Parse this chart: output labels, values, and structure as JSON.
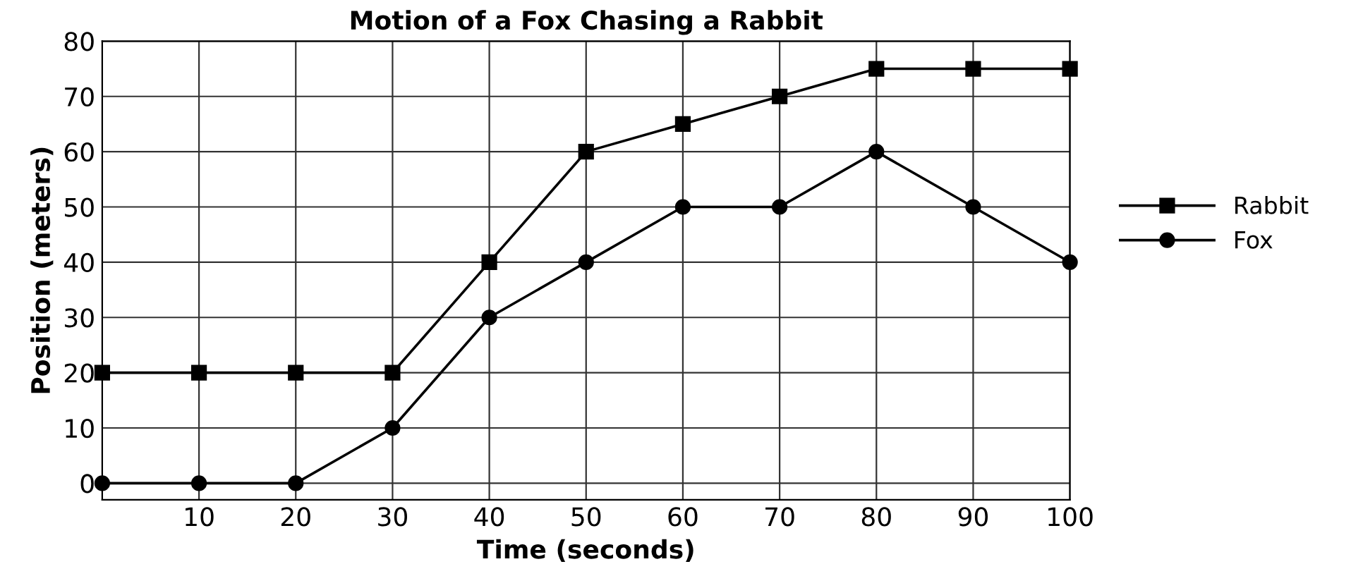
{
  "chart_data": {
    "type": "line",
    "title": "Motion of a Fox Chasing a Rabbit",
    "xlabel": "Time (seconds)",
    "ylabel": "Position (meters)",
    "x": [
      0,
      10,
      20,
      30,
      40,
      50,
      60,
      70,
      80,
      90,
      100
    ],
    "series": [
      {
        "name": "Rabbit",
        "color": "#000000",
        "marker": "square",
        "values": [
          20,
          20,
          20,
          20,
          40,
          60,
          65,
          70,
          75,
          75,
          75
        ]
      },
      {
        "name": "Fox",
        "color": "#000000",
        "marker": "circle",
        "values": [
          0,
          0,
          0,
          10,
          30,
          40,
          50,
          50,
          60,
          50,
          40
        ]
      }
    ],
    "xlim": [
      0,
      100
    ],
    "xticks": [
      10,
      20,
      30,
      40,
      50,
      60,
      70,
      80,
      90,
      100
    ],
    "ylim": [
      -3,
      80
    ],
    "yticks": [
      0,
      10,
      20,
      30,
      40,
      50,
      60,
      70,
      80
    ],
    "grid": true,
    "legend": "right",
    "line_style": "solid"
  }
}
